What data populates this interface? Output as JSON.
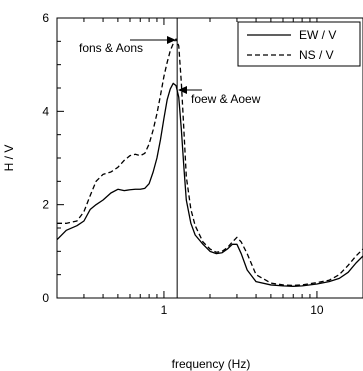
{
  "chart_data": {
    "type": "line",
    "title": "",
    "xlabel": "frequency (Hz)",
    "ylabel": "H / V",
    "xscale": "log",
    "xlim": [
      0.2,
      20
    ],
    "ylim": [
      0,
      6
    ],
    "grid": false,
    "legend_position": "top-right",
    "x_ticks": [
      {
        "value": 1,
        "label": "1"
      },
      {
        "value": 10,
        "label": "10"
      }
    ],
    "y_ticks": [
      {
        "value": 0,
        "label": "0"
      },
      {
        "value": 2,
        "label": "2"
      },
      {
        "value": 4,
        "label": "4"
      },
      {
        "value": 6,
        "label": "6"
      }
    ],
    "vertical_marker": {
      "x": 1.22
    },
    "series": [
      {
        "name": "EW / V",
        "style": "solid",
        "x": [
          0.2,
          0.23,
          0.27,
          0.3,
          0.33,
          0.36,
          0.4,
          0.45,
          0.5,
          0.55,
          0.6,
          0.65,
          0.7,
          0.75,
          0.8,
          0.85,
          0.9,
          0.95,
          1.0,
          1.05,
          1.1,
          1.15,
          1.2,
          1.25,
          1.3,
          1.35,
          1.4,
          1.5,
          1.6,
          1.8,
          2.0,
          2.2,
          2.4,
          2.6,
          2.8,
          3.0,
          3.2,
          3.5,
          4.0,
          5.0,
          6.0,
          7.0,
          8.0,
          10.0,
          12.0,
          14.0,
          16.0,
          18.0,
          20.0
        ],
        "y": [
          1.25,
          1.45,
          1.55,
          1.65,
          1.9,
          2.0,
          2.1,
          2.25,
          2.33,
          2.3,
          2.32,
          2.33,
          2.33,
          2.35,
          2.45,
          2.7,
          3.0,
          3.4,
          3.85,
          4.25,
          4.48,
          4.6,
          4.55,
          4.3,
          3.6,
          2.8,
          2.1,
          1.6,
          1.35,
          1.15,
          1.0,
          0.95,
          0.97,
          1.05,
          1.15,
          1.15,
          0.95,
          0.6,
          0.35,
          0.28,
          0.26,
          0.25,
          0.26,
          0.3,
          0.35,
          0.42,
          0.55,
          0.75,
          0.9
        ]
      },
      {
        "name": "NS / V",
        "style": "dashed",
        "x": [
          0.2,
          0.23,
          0.27,
          0.3,
          0.33,
          0.36,
          0.4,
          0.45,
          0.5,
          0.55,
          0.6,
          0.65,
          0.7,
          0.75,
          0.8,
          0.85,
          0.9,
          0.95,
          1.0,
          1.05,
          1.1,
          1.15,
          1.2,
          1.25,
          1.3,
          1.35,
          1.4,
          1.5,
          1.6,
          1.8,
          2.0,
          2.2,
          2.4,
          2.6,
          2.8,
          3.0,
          3.2,
          3.5,
          4.0,
          5.0,
          6.0,
          7.0,
          8.0,
          10.0,
          12.0,
          14.0,
          16.0,
          18.0,
          20.0
        ],
        "y": [
          1.6,
          1.6,
          1.65,
          1.85,
          2.2,
          2.5,
          2.65,
          2.7,
          2.8,
          2.95,
          3.05,
          3.08,
          3.05,
          3.1,
          3.3,
          3.6,
          3.95,
          4.35,
          4.75,
          5.05,
          5.3,
          5.45,
          5.55,
          5.4,
          4.6,
          3.6,
          2.6,
          1.9,
          1.55,
          1.2,
          1.05,
          0.98,
          1.0,
          1.08,
          1.2,
          1.3,
          1.2,
          0.95,
          0.5,
          0.32,
          0.28,
          0.27,
          0.28,
          0.33,
          0.38,
          0.5,
          0.7,
          0.9,
          1.05
        ]
      }
    ],
    "annotations": [
      {
        "text": "fons & Aons",
        "target_series": "NS / V",
        "target_x": 1.2,
        "target_y": 5.55
      },
      {
        "text": "foew & Aoew",
        "target_series": "EW / V",
        "target_x": 1.22,
        "target_y": 4.6
      }
    ]
  }
}
